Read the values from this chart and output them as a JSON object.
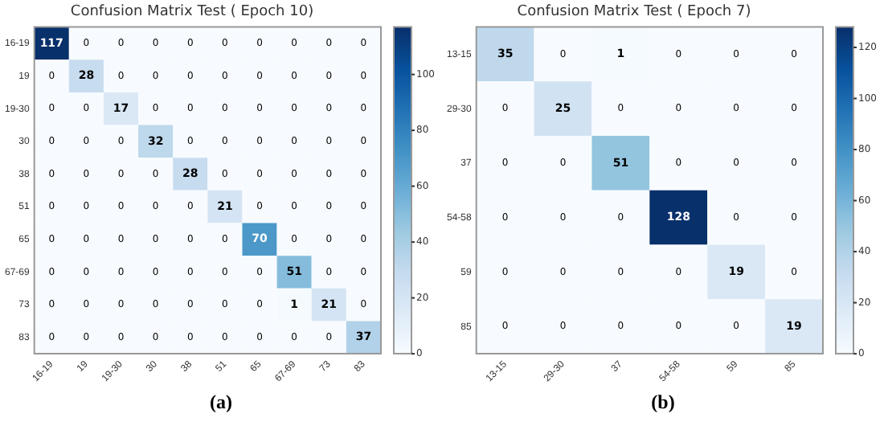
{
  "chart_data": [
    {
      "type": "heatmap",
      "title": "Confusion Matrix Test ( Epoch 10)",
      "categories": [
        "16-19",
        "19",
        "19-30",
        "30",
        "38",
        "51",
        "65",
        "67-69",
        "73",
        "83"
      ],
      "y_categories": [
        "16-19",
        "19",
        "19-30",
        "30",
        "38",
        "51",
        "65",
        "67-69",
        "73",
        "83"
      ],
      "cells": [
        [
          117,
          0,
          0,
          0,
          0,
          0,
          0,
          0,
          0,
          0
        ],
        [
          0,
          28,
          0,
          0,
          0,
          0,
          0,
          0,
          0,
          0
        ],
        [
          0,
          0,
          17,
          0,
          0,
          0,
          0,
          0,
          0,
          0
        ],
        [
          0,
          0,
          0,
          32,
          0,
          0,
          0,
          0,
          0,
          0
        ],
        [
          0,
          0,
          0,
          0,
          28,
          0,
          0,
          0,
          0,
          0
        ],
        [
          0,
          0,
          0,
          0,
          0,
          21,
          0,
          0,
          0,
          0
        ],
        [
          0,
          0,
          0,
          0,
          0,
          0,
          70,
          0,
          0,
          0
        ],
        [
          0,
          0,
          0,
          0,
          0,
          0,
          0,
          51,
          0,
          0
        ],
        [
          0,
          0,
          0,
          0,
          0,
          0,
          0,
          1,
          21,
          0
        ],
        [
          0,
          0,
          0,
          0,
          0,
          0,
          0,
          0,
          0,
          37
        ]
      ],
      "data_labels": true,
      "clim": [
        0,
        117
      ],
      "cticks": [
        0,
        20,
        40,
        60,
        80,
        100
      ],
      "annotations": [
        "(a)"
      ]
    },
    {
      "type": "heatmap",
      "title": "Confusion Matrix Test ( Epoch 7)",
      "categories": [
        "13-15",
        "29-30",
        "37",
        "54-58",
        "59",
        "85"
      ],
      "y_categories": [
        "13-15",
        "29-30",
        "37",
        "54-58",
        "59",
        "85"
      ],
      "cells": [
        [
          35,
          0,
          1,
          0,
          0,
          0
        ],
        [
          0,
          25,
          0,
          0,
          0,
          0
        ],
        [
          0,
          0,
          51,
          0,
          0,
          0
        ],
        [
          0,
          0,
          0,
          128,
          0,
          0
        ],
        [
          0,
          0,
          0,
          0,
          19,
          0
        ],
        [
          0,
          0,
          0,
          0,
          0,
          19
        ]
      ],
      "data_labels": true,
      "clim": [
        0,
        128
      ],
      "cticks": [
        0,
        20,
        40,
        60,
        80,
        100,
        120
      ],
      "annotations": [
        "(b)"
      ]
    }
  ]
}
